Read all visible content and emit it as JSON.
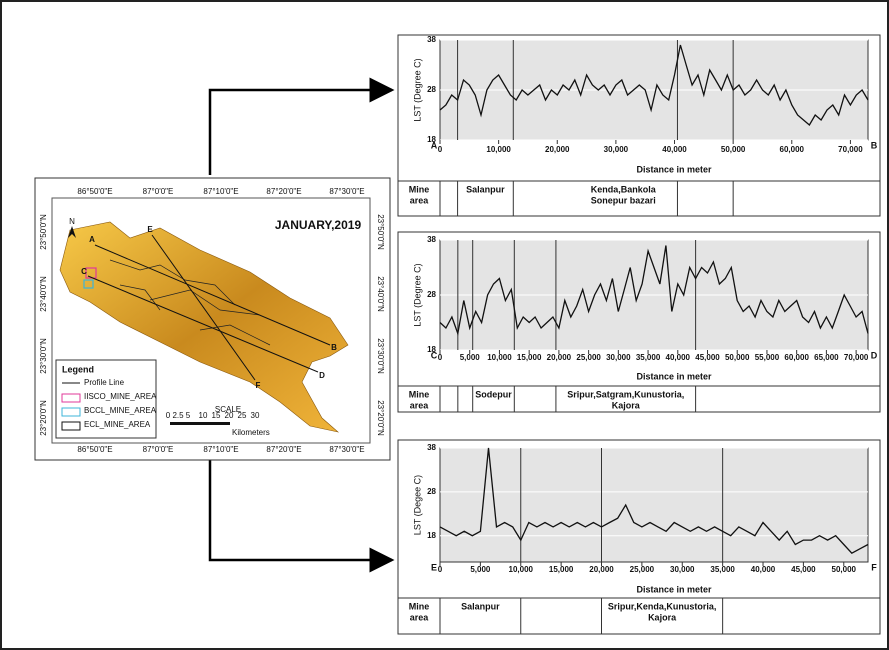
{
  "map": {
    "title": "JANUARY,2019",
    "north": "N",
    "coords_top": [
      "86°50'0\"E",
      "87°0'0\"E",
      "87°10'0\"E",
      "87°20'0\"E",
      "87°30'0\"E"
    ],
    "coords_bottom": [
      "86°50'0\"E",
      "87°0'0\"E",
      "87°10'0\"E",
      "87°20'0\"E",
      "87°30'0\"E"
    ],
    "coords_left": [
      "23°50'0\"N",
      "23°40'0\"N",
      "23°30'0\"N",
      "23°20'0\"N"
    ],
    "coords_right": [
      "23°50'0\"N",
      "23°40'0\"N",
      "23°30'0\"N",
      "23°20'0\"N"
    ],
    "profile_letters": [
      "A",
      "B",
      "C",
      "D",
      "E",
      "F"
    ],
    "legend": {
      "title": "Legend",
      "items": [
        "Profile Line",
        "IISCO_MINE_AREA",
        "BCCL_MINE_AREA",
        "ECL_MINE_AREA"
      ]
    },
    "scale": {
      "title": "SCALE",
      "labels": [
        "0 2.5 5",
        "10",
        "15",
        "20",
        "25",
        "30"
      ],
      "unit": "Kilometers"
    }
  },
  "chart_data": [
    {
      "type": "line",
      "y_label": "LST (Degree C)",
      "x_label": "Distance in meter",
      "start_label": "A",
      "end_label": "B",
      "color": "#111111",
      "grid": true,
      "table_header": [
        "Mine",
        "area"
      ],
      "mine_areas": [
        [
          "Salanpur"
        ],
        [
          "Kenda,Bankola",
          "Sonepur bazari"
        ]
      ],
      "dividers": [
        3000,
        12500,
        40500,
        50000
      ],
      "xlim": [
        0,
        73000
      ],
      "ylim": [
        18,
        38
      ],
      "yticks": [
        18,
        28,
        38
      ],
      "xticks": [
        0,
        {
          "value": 10000,
          "label": "10,000"
        },
        {
          "value": 20000,
          "label": "20,000"
        },
        {
          "value": 30000,
          "label": "30,000"
        },
        {
          "value": 40000,
          "label": "40,000"
        },
        {
          "value": 50000,
          "label": "50,000"
        },
        {
          "value": 60000,
          "label": "60,000"
        },
        {
          "value": 70000,
          "label": "70,000"
        }
      ],
      "x": [
        0,
        1000,
        2000,
        3000,
        4000,
        5000,
        6000,
        7000,
        8000,
        9000,
        10000,
        11000,
        12000,
        13000,
        14000,
        15000,
        16000,
        17000,
        18000,
        19000,
        20000,
        21000,
        22000,
        23000,
        24000,
        25000,
        26000,
        27000,
        28000,
        29000,
        30000,
        31000,
        32000,
        33000,
        34000,
        35000,
        36000,
        37000,
        38000,
        39000,
        40000,
        41000,
        42000,
        43000,
        44000,
        45000,
        46000,
        47000,
        48000,
        49000,
        50000,
        51000,
        52000,
        53000,
        54000,
        55000,
        56000,
        57000,
        58000,
        59000,
        60000,
        61000,
        62000,
        63000,
        64000,
        65000,
        66000,
        67000,
        68000,
        69000,
        70000,
        71000,
        72000,
        73000
      ],
      "values": [
        24,
        25,
        27,
        26,
        30,
        29,
        27,
        23,
        28,
        30,
        31,
        29,
        27,
        26,
        28,
        27,
        28,
        29,
        26,
        28,
        27,
        29,
        28,
        30,
        27,
        31,
        29,
        28,
        29,
        27,
        29,
        30,
        27,
        28,
        29,
        28,
        24,
        29,
        27,
        26,
        31,
        37,
        33,
        29,
        31,
        27,
        32,
        30,
        28,
        31,
        28,
        29,
        27,
        28,
        30,
        28,
        27,
        29,
        26,
        28,
        25,
        23,
        22,
        21,
        23,
        22,
        24,
        25,
        23,
        27,
        25,
        27,
        28,
        26
      ]
    },
    {
      "type": "line",
      "y_label": "LST (Degree C)",
      "x_label": "Distance in meter",
      "start_label": "C",
      "end_label": "D",
      "color": "#111111",
      "grid": true,
      "table_header": [
        "Mine",
        "area"
      ],
      "mine_areas": [
        [
          "Sodepur"
        ],
        [
          "Sripur,Satgram,Kunustoria,",
          "Kajora"
        ]
      ],
      "dividers": [
        3000,
        5500,
        12500,
        19500,
        43000
      ],
      "xlim": [
        0,
        72000
      ],
      "ylim": [
        18,
        38
      ],
      "yticks": [
        18,
        28,
        38
      ],
      "xticks": [
        0,
        {
          "value": 5000,
          "label": "5,000"
        },
        {
          "value": 10000,
          "label": "10,000"
        },
        {
          "value": 15000,
          "label": "15,000"
        },
        {
          "value": 20000,
          "label": "20,000"
        },
        {
          "value": 25000,
          "label": "25,000"
        },
        {
          "value": 30000,
          "label": "30,000"
        },
        {
          "value": 35000,
          "label": "35,000"
        },
        {
          "value": 40000,
          "label": "40,000"
        },
        {
          "value": 45000,
          "label": "45,000"
        },
        {
          "value": 50000,
          "label": "50,000"
        },
        {
          "value": 55000,
          "label": "55,000"
        },
        {
          "value": 60000,
          "label": "60,000"
        },
        {
          "value": 65000,
          "label": "65,000"
        },
        {
          "value": 70000,
          "label": "70,000"
        }
      ],
      "x": [
        0,
        1000,
        2000,
        3000,
        4000,
        5000,
        6000,
        7000,
        8000,
        9000,
        10000,
        11000,
        12000,
        13000,
        14000,
        15000,
        16000,
        17000,
        18000,
        19000,
        20000,
        21000,
        22000,
        23000,
        24000,
        25000,
        26000,
        27000,
        28000,
        29000,
        30000,
        31000,
        32000,
        33000,
        34000,
        35000,
        36000,
        37000,
        38000,
        39000,
        40000,
        41000,
        42000,
        43000,
        44000,
        45000,
        46000,
        47000,
        48000,
        49000,
        50000,
        51000,
        52000,
        53000,
        54000,
        55000,
        56000,
        57000,
        58000,
        59000,
        60000,
        61000,
        62000,
        63000,
        64000,
        65000,
        66000,
        67000,
        68000,
        69000,
        70000,
        71000,
        72000
      ],
      "values": [
        23,
        22,
        24,
        21,
        27,
        22,
        25,
        23,
        28,
        30,
        31,
        27,
        29,
        22,
        24,
        23,
        24,
        22,
        23,
        24,
        22,
        27,
        24,
        26,
        29,
        25,
        28,
        30,
        27,
        31,
        25,
        29,
        33,
        27,
        30,
        36,
        33,
        30,
        37,
        25,
        30,
        28,
        33,
        31,
        33,
        32,
        34,
        30,
        31,
        33,
        27,
        25,
        26,
        24,
        27,
        25,
        24,
        27,
        25,
        26,
        27,
        24,
        23,
        25,
        22,
        24,
        22,
        25,
        28,
        26,
        24,
        25,
        21
      ]
    },
    {
      "type": "line",
      "y_label": "LST (Degee C)",
      "x_label": "Distance in meter",
      "start_label": "E",
      "end_label": "F",
      "color": "#111111",
      "grid": true,
      "table_header": [
        "Mine",
        "area"
      ],
      "mine_areas": [
        [
          "Salanpur"
        ],
        [
          "Sripur,Kenda,Kunustoria,",
          "Kajora"
        ]
      ],
      "dividers": [
        10000,
        20000,
        35000
      ],
      "xlim": [
        0,
        53000
      ],
      "ylim": [
        12,
        38
      ],
      "yticks": [
        18,
        28,
        38
      ],
      "xticks": [
        0,
        {
          "value": 5000,
          "label": "5,000"
        },
        {
          "value": 10000,
          "label": "10,000"
        },
        {
          "value": 15000,
          "label": "15,000"
        },
        {
          "value": 20000,
          "label": "20,000"
        },
        {
          "value": 25000,
          "label": "25,000"
        },
        {
          "value": 30000,
          "label": "30,000"
        },
        {
          "value": 35000,
          "label": "35,000"
        },
        {
          "value": 40000,
          "label": "40,000"
        },
        {
          "value": 45000,
          "label": "45,000"
        },
        {
          "value": 50000,
          "label": "50,000"
        }
      ],
      "x": [
        0,
        1000,
        2000,
        3000,
        4000,
        5000,
        6000,
        7000,
        8000,
        9000,
        10000,
        11000,
        12000,
        13000,
        14000,
        15000,
        16000,
        17000,
        18000,
        19000,
        20000,
        21000,
        22000,
        23000,
        24000,
        25000,
        26000,
        27000,
        28000,
        29000,
        30000,
        31000,
        32000,
        33000,
        34000,
        35000,
        36000,
        37000,
        38000,
        39000,
        40000,
        41000,
        42000,
        43000,
        44000,
        45000,
        46000,
        47000,
        48000,
        49000,
        50000,
        51000,
        52000,
        53000
      ],
      "values": [
        20,
        19,
        18,
        19,
        18,
        19,
        38,
        20,
        21,
        20,
        17,
        21,
        20,
        21,
        20,
        21,
        20,
        21,
        20,
        21,
        20,
        21,
        22,
        25,
        21,
        20,
        21,
        20,
        19,
        21,
        20,
        19,
        20,
        19,
        20,
        19,
        18,
        20,
        19,
        18,
        21,
        19,
        17,
        19,
        16,
        17,
        17,
        18,
        17,
        18,
        16,
        14,
        15,
        16
      ]
    }
  ]
}
